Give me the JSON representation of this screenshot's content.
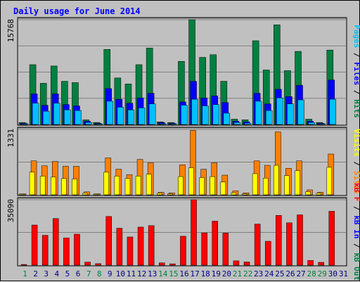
{
  "chart_data": {
    "type": "bar",
    "title": "Daily usage for June 2014",
    "categories": [
      "1",
      "2",
      "3",
      "4",
      "5",
      "6",
      "7",
      "8",
      "9",
      "10",
      "11",
      "12",
      "13",
      "14",
      "15",
      "16",
      "17",
      "18",
      "19",
      "20",
      "21",
      "22",
      "23",
      "24",
      "25",
      "26",
      "27",
      "28",
      "29",
      "30",
      "31"
    ],
    "weekend_days": [
      "1",
      "7",
      "8",
      "14",
      "15",
      "21",
      "22",
      "28",
      "29"
    ],
    "panels": [
      {
        "ymax_label": "15768",
        "ymax": 15768,
        "axis_legend": [
          {
            "text": "Pages",
            "color": "#00c0ff"
          },
          {
            "text": " / ",
            "color": "#000000"
          },
          {
            "text": "Files",
            "color": "#0000ff"
          },
          {
            "text": " / ",
            "color": "#000000"
          },
          {
            "text": "Hits",
            "color": "#008040"
          }
        ],
        "series": [
          {
            "name": "Hits",
            "color": "#008040",
            "values": [
              300,
              9000,
              6200,
              8800,
              6500,
              6300,
              700,
              300,
              11300,
              7000,
              6100,
              9000,
              11500,
              400,
              300,
              9500,
              15768,
              10100,
              10500,
              6500,
              800,
              700,
              12600,
              8200,
              15000,
              8100,
              11000,
              800,
              300,
              11200,
              0
            ]
          },
          {
            "name": "Files",
            "color": "#0000ff",
            "values": [
              200,
              4600,
              2900,
              4600,
              3000,
              2800,
              500,
              200,
              5400,
              3800,
              3200,
              4000,
              4700,
              300,
              200,
              3400,
              6500,
              4000,
              4300,
              3300,
              500,
              400,
              4700,
              3100,
              5300,
              4200,
              5900,
              500,
              200,
              6700,
              0
            ]
          },
          {
            "name": "Pages",
            "color": "#00c0ff",
            "values": [
              100,
              3200,
              2000,
              3200,
              2200,
              2100,
              300,
              100,
              3500,
              2600,
              2200,
              2500,
              3100,
              100,
              100,
              2900,
              3800,
              2800,
              3000,
              1700,
              300,
              200,
              3500,
              2100,
              4000,
              3100,
              3700,
              300,
              100,
              3800,
              0
            ]
          }
        ]
      },
      {
        "ymax_label": "1331",
        "ymax": 1331,
        "axis_legend": [
          {
            "text": "Visits",
            "color": "#ffff00"
          },
          {
            "text": " / ",
            "color": "#000000"
          },
          {
            "text": "Sites",
            "color": "#ff8000"
          }
        ],
        "series": [
          {
            "name": "Sites",
            "color": "#ff8000",
            "values": [
              20,
              690,
              590,
              680,
              580,
              580,
              60,
              20,
              750,
              520,
              410,
              720,
              650,
              50,
              40,
              610,
              1310,
              520,
              650,
              400,
              80,
              40,
              690,
              600,
              1280,
              540,
              690,
              100,
              50,
              830,
              0
            ]
          },
          {
            "name": "Visits",
            "color": "#ffff00",
            "values": [
              15,
              460,
              380,
              360,
              330,
              320,
              30,
              15,
              460,
              380,
              330,
              380,
              420,
              30,
              20,
              370,
              550,
              350,
              370,
              260,
              40,
              20,
              430,
              340,
              600,
              390,
              490,
              60,
              30,
              560,
              0
            ]
          }
        ]
      },
      {
        "ymax_label": "35090",
        "ymax": 35090,
        "axis_legend": [
          {
            "text": "kB F",
            "color": "#ff0000"
          },
          {
            "text": " / ",
            "color": "#000000"
          },
          {
            "text": "kB In",
            "color": "#0000ff"
          },
          {
            "text": " / ",
            "color": "#000000"
          },
          {
            "text": "kB Out",
            "color": "#008040"
          }
        ],
        "series": [
          {
            "name": "kB F",
            "color": "#ff0000",
            "values": [
              300,
              21500,
              16000,
              25000,
              14600,
              16600,
              1600,
              800,
              26100,
              19800,
              15100,
              20400,
              21200,
              1200,
              700,
              15500,
              35090,
              17300,
              23600,
              17200,
              2300,
              1700,
              22000,
              12800,
              26700,
              22700,
              27000,
              2500,
              1500,
              28900,
              0
            ]
          }
        ]
      }
    ]
  }
}
